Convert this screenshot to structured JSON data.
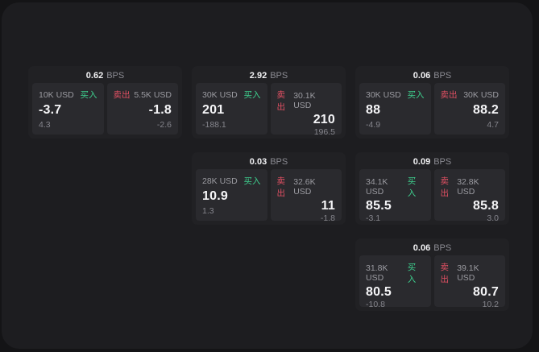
{
  "labels": {
    "bps_unit": "BPS",
    "buy": "买入",
    "sell": "卖出"
  },
  "colors": {
    "buy": "#3ecf8e",
    "sell": "#e25063",
    "panel_bg": "#1d1d20",
    "card_bg": "#212124",
    "pane_bg": "#2a2a2e"
  },
  "columns": [
    {
      "name": "column-1",
      "cards": [
        {
          "bps": "0.62",
          "buy": {
            "amount": "10K USD",
            "value": "-3.7",
            "delta": "4.3"
          },
          "sell": {
            "amount": "5.5K USD",
            "value": "-1.8",
            "delta": "-2.6"
          }
        }
      ]
    },
    {
      "name": "column-2",
      "cards": [
        {
          "bps": "2.92",
          "buy": {
            "amount": "30K USD",
            "value": "201",
            "delta": "-188.1"
          },
          "sell": {
            "amount": "30.1K USD",
            "value": "210",
            "delta": "196.5"
          }
        },
        {
          "bps": "0.03",
          "buy": {
            "amount": "28K USD",
            "value": "10.9",
            "delta": "1.3"
          },
          "sell": {
            "amount": "32.6K USD",
            "value": "11",
            "delta": "-1.8"
          }
        }
      ]
    },
    {
      "name": "column-3",
      "cards": [
        {
          "bps": "0.06",
          "buy": {
            "amount": "30K USD",
            "value": "88",
            "delta": "-4.9"
          },
          "sell": {
            "amount": "30K USD",
            "value": "88.2",
            "delta": "4.7"
          }
        },
        {
          "bps": "0.09",
          "buy": {
            "amount": "34.1K USD",
            "value": "85.5",
            "delta": "-3.1"
          },
          "sell": {
            "amount": "32.8K USD",
            "value": "85.8",
            "delta": "3.0"
          }
        },
        {
          "bps": "0.06",
          "buy": {
            "amount": "31.8K USD",
            "value": "80.5",
            "delta": "-10.8"
          },
          "sell": {
            "amount": "39.1K USD",
            "value": "80.7",
            "delta": "10.2"
          }
        }
      ]
    }
  ]
}
